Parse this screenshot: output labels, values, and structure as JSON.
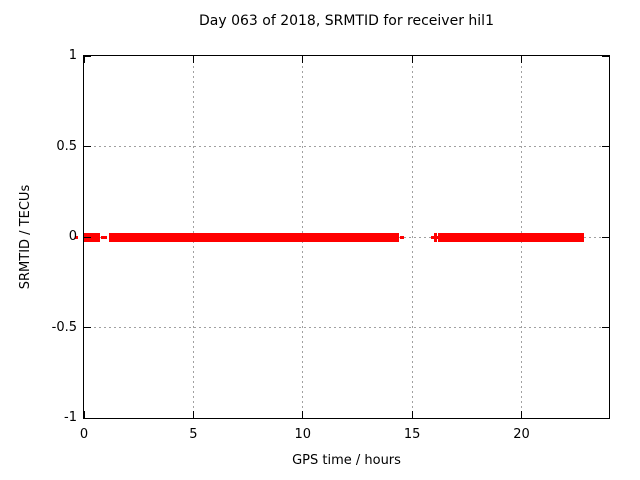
{
  "title": "Day 063 of 2018, SRMTID for receiver hil1",
  "colors": {
    "data": "#ff0000",
    "grid": "#a0a0a0",
    "axis": "#000000",
    "background": "#ffffff",
    "text": "#000000"
  },
  "chart_data": {
    "type": "scatter",
    "title": "Day 063 of 2018, SRMTID for receiver hil1",
    "xlabel": "GPS time / hours",
    "ylabel": "SRMTID / TECUs",
    "xlim": [
      0,
      24
    ],
    "ylim": [
      -1,
      1
    ],
    "x_tick_values": [
      0,
      5,
      10,
      15,
      20
    ],
    "x_tick_labels": [
      "0",
      "5",
      "10",
      "15",
      "20"
    ],
    "y_tick_values": [
      1,
      0.5,
      0,
      -0.5,
      -1
    ],
    "y_tick_labels": [
      "1",
      "0.5",
      "0",
      "-0.5",
      "-1"
    ],
    "grid": true,
    "legend": "none",
    "marker": "plus",
    "series": [
      {
        "name": "SRMTID",
        "color": "#ff0000",
        "y_value": 0,
        "segments": [
          {
            "start": -0.42,
            "end": -0.28,
            "density": "sparse"
          },
          {
            "start": 0.0,
            "end": 0.75,
            "density": "dense"
          },
          {
            "start": 0.78,
            "end": 1.05,
            "density": "sparse"
          },
          {
            "start": 1.14,
            "end": 14.4,
            "density": "dense"
          },
          {
            "start": 14.45,
            "end": 14.65,
            "density": "sparse"
          },
          {
            "start": 16.05,
            "end": 16.05,
            "density": "point"
          },
          {
            "start": 16.19,
            "end": 22.86,
            "density": "dense"
          }
        ]
      }
    ]
  }
}
